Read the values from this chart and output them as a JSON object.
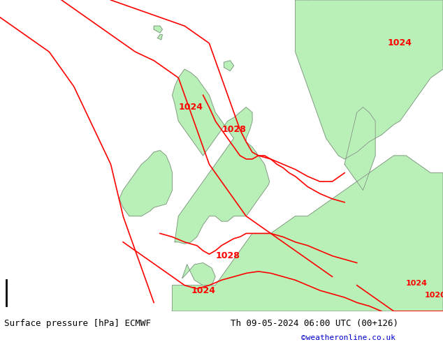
{
  "title_left": "Surface pressure [hPa] ECMWF",
  "title_right": "Th 09-05-2024 06:00 UTC (00+126)",
  "credit": "©weatheronline.co.uk",
  "credit_color": "#0000cc",
  "sea_color": "#e8e8e8",
  "land_color": "#b8f0b8",
  "border_color": "#808080",
  "isobar_color": "#ff0000",
  "text_color": "#000000",
  "figsize": [
    6.34,
    4.9
  ],
  "dpi": 100,
  "xlim": [
    -20,
    16
  ],
  "ylim": [
    46,
    64
  ],
  "isobar_lw": 1.2,
  "label_fontsize": 9
}
